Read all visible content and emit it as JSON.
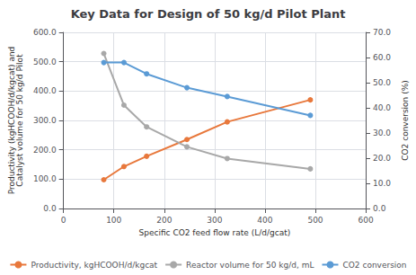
{
  "chart_data": {
    "type": "line",
    "title": "Key Data for Design of 50 kg/d Pilot Plant",
    "xlabel": "Specific CO2 feed flow rate (L/d/gcat)",
    "ylabel": "Productivity (kgHCOOH/d/kgcat) and\nCatalyst volume for 50 kg/d Pilot",
    "y2label": "CO2 conversion (%)",
    "x": [
      80,
      120,
      165,
      245,
      325,
      490
    ],
    "series": [
      {
        "name": "Productivity, kgHCOOH/d/kgcat",
        "color": "#E8783C",
        "marker": "circle",
        "values": [
          98,
          143,
          178,
          235,
          295,
          370
        ]
      },
      {
        "name": "Reactor volume for 50 kg/d, mL",
        "color": "#A8A8A8",
        "marker": "circle",
        "values": [
          528,
          352,
          278,
          210,
          170,
          135
        ]
      },
      {
        "name": "CO2 conversion",
        "color": "#5B9BD5",
        "marker": "circle",
        "axis": "y2",
        "values": [
          58.0,
          58.0,
          53.5,
          48.0,
          44.5,
          37.0
        ]
      }
    ],
    "xlim": [
      0,
      600
    ],
    "xticks": [
      0,
      100,
      200,
      300,
      400,
      500,
      600
    ],
    "ylim": [
      0,
      600
    ],
    "yticks": [
      {
        "value": 0,
        "label": "0.0"
      },
      {
        "value": 100,
        "label": "100.0"
      },
      {
        "value": 200,
        "label": "200.0"
      },
      {
        "value": 300,
        "label": "300.0"
      },
      {
        "value": 400,
        "label": "400.0"
      },
      {
        "value": 500,
        "label": "500.0"
      },
      {
        "value": 600,
        "label": "600.0"
      }
    ],
    "y2lim": [
      0,
      70
    ],
    "y2ticks": [
      {
        "value": 0,
        "label": "0.0"
      },
      {
        "value": 10,
        "label": "10.0"
      },
      {
        "value": 20,
        "label": "20.0"
      },
      {
        "value": 30,
        "label": "30.0"
      },
      {
        "value": 40,
        "label": "40.0"
      },
      {
        "value": 50,
        "label": "50.0"
      },
      {
        "value": 60,
        "label": "60.0"
      },
      {
        "value": 70,
        "label": "70.0"
      }
    ],
    "grid": true,
    "legend": "bottom"
  }
}
